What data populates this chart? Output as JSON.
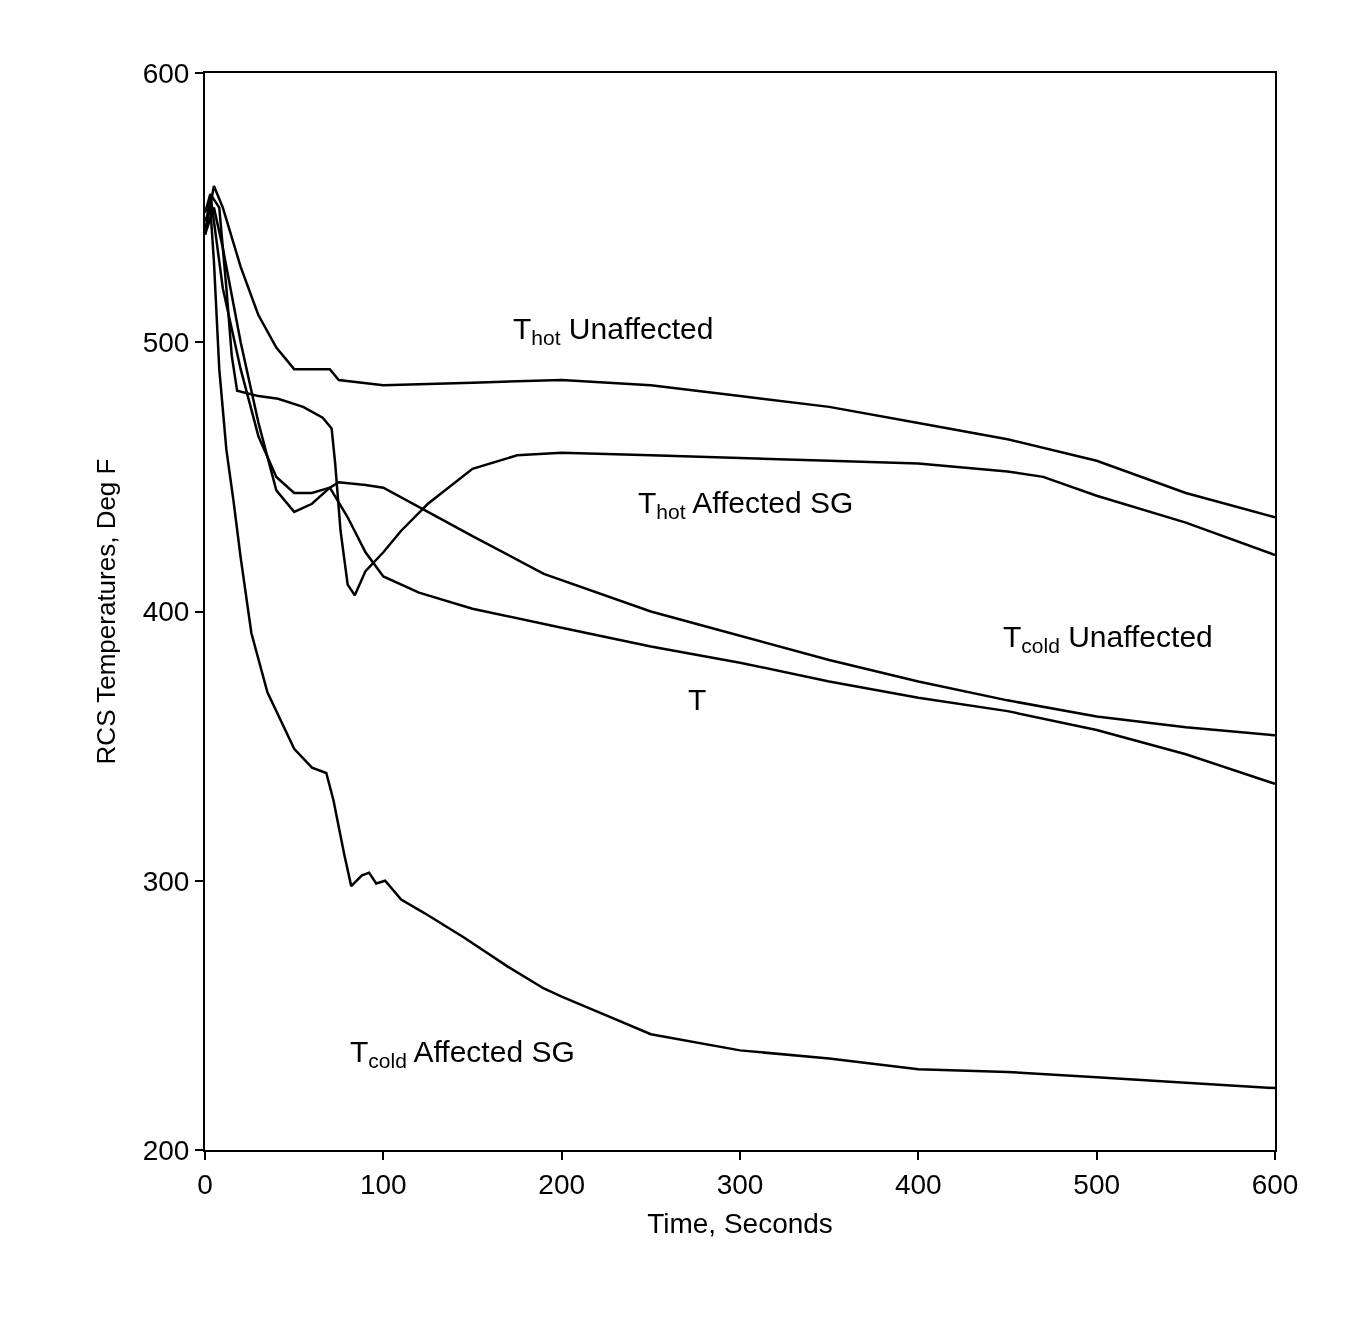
{
  "chart_data": {
    "type": "line",
    "xlabel": "Time, Seconds",
    "ylabel": "RCS Temperatures, Deg F",
    "xlim": [
      0,
      600
    ],
    "xticks": [
      0,
      100,
      200,
      300,
      400,
      500,
      600
    ],
    "ylim": [
      200,
      600
    ],
    "yticks": [
      200,
      300,
      400,
      500,
      600
    ],
    "grid": false,
    "marker": "none",
    "line_style": "solid",
    "series": [
      {
        "color": "#000000",
        "x": [
          0,
          5,
          10,
          20,
          30,
          40,
          50,
          60,
          70,
          75,
          100,
          150,
          200,
          250,
          300,
          350,
          400,
          450,
          500,
          550,
          600
        ],
        "values": [
          540,
          558,
          550,
          528,
          510,
          498,
          490,
          490,
          490,
          486,
          484,
          485,
          486,
          484,
          480,
          476,
          470,
          464,
          456,
          444,
          435
        ]
      },
      {
        "color": "#000000",
        "x": [
          0,
          3,
          8,
          12,
          15,
          18,
          30,
          41,
          55,
          66,
          71,
          73,
          76,
          80,
          84,
          90,
          100,
          110,
          125,
          150,
          175,
          200,
          250,
          300,
          350,
          400,
          450,
          470,
          500,
          550,
          600
        ],
        "values": [
          548,
          555,
          550,
          520,
          495,
          482,
          480,
          479,
          476,
          472,
          468,
          455,
          430,
          410,
          406,
          415,
          422,
          430,
          440,
          453,
          458,
          459,
          458,
          457,
          456,
          455,
          452,
          450,
          443,
          433,
          421
        ]
      },
      {
        "color": "#000000",
        "x": [
          0,
          5,
          10,
          20,
          30,
          40,
          50,
          60,
          70,
          75,
          90,
          100,
          125,
          150,
          190,
          250,
          300,
          350,
          400,
          450,
          500,
          550,
          600
        ],
        "values": [
          540,
          550,
          535,
          500,
          470,
          445,
          437,
          440,
          446,
          448,
          447,
          446,
          437,
          428,
          414,
          400,
          391,
          382,
          374,
          367,
          361,
          357,
          354
        ]
      },
      {
        "color": "#000000",
        "x": [
          0,
          3,
          10,
          20,
          30,
          40,
          50,
          60,
          70,
          80,
          90,
          100,
          120,
          150,
          200,
          250,
          300,
          350,
          400,
          450,
          500,
          550,
          600
        ],
        "values": [
          540,
          555,
          520,
          490,
          465,
          450,
          444,
          444,
          446,
          435,
          422,
          413,
          407,
          401,
          394,
          387,
          381,
          374,
          368,
          363,
          356,
          347,
          336
        ]
      },
      {
        "color": "#000000",
        "x": [
          0,
          3,
          5,
          8,
          12,
          16,
          20,
          26,
          35,
          50,
          60,
          68,
          72,
          78,
          82,
          88,
          92,
          96,
          101,
          110,
          123,
          145,
          170,
          190,
          200,
          250,
          300,
          350,
          400,
          450,
          500,
          550,
          600
        ],
        "values": [
          545,
          550,
          530,
          490,
          460,
          441,
          420,
          392,
          370,
          349,
          342,
          340,
          330,
          310,
          298,
          302,
          303,
          299,
          300,
          293,
          288,
          279,
          268,
          260,
          257,
          243,
          237,
          234,
          230,
          229,
          227,
          225,
          223
        ]
      }
    ],
    "annotations": [
      "T$_{hot}$ Unaffected",
      "T$_{hot}$ Affected SG",
      "T$_{cold}$ Unaffected",
      "T",
      "T$_{cold}$ Affected SG"
    ]
  }
}
